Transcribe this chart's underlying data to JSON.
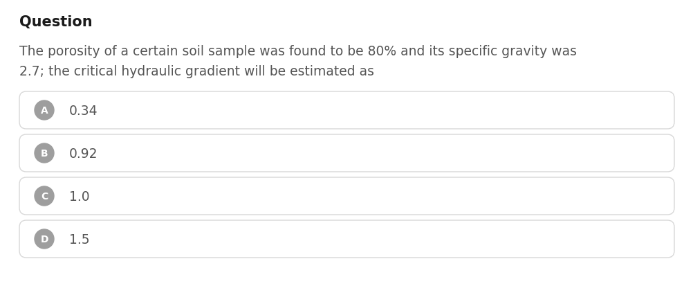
{
  "title": "Question",
  "question_text_line1": "The porosity of a certain soil sample was found to be 80% and its specific gravity was",
  "question_text_line2": "2.7; the critical hydraulic gradient will be estimated as",
  "options": [
    {
      "label": "A",
      "text": "0.34"
    },
    {
      "label": "B",
      "text": "0.92"
    },
    {
      "label": "C",
      "text": "1.0"
    },
    {
      "label": "D",
      "text": "1.5"
    }
  ],
  "bg_color": "#ffffff",
  "title_color": "#1a1a1a",
  "question_color": "#555555",
  "option_text_color": "#555555",
  "option_label_bg": "#9e9e9e",
  "option_label_text": "#ffffff",
  "option_box_border": "#d8d8d8",
  "option_box_bg": "#ffffff",
  "fig_width": 10.03,
  "fig_height": 4.27,
  "dpi": 100
}
